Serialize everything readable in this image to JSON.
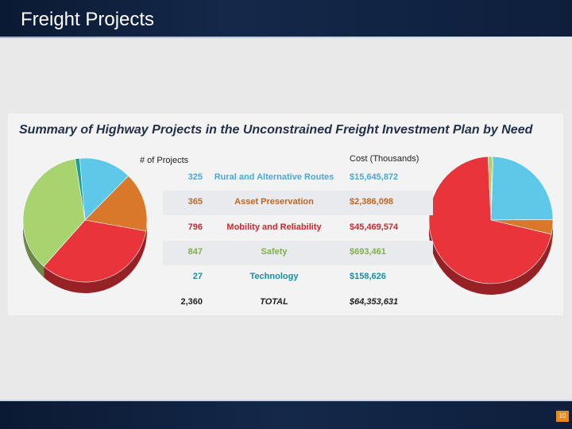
{
  "header": {
    "title": "Freight Projects"
  },
  "footer": {
    "page_number": "10"
  },
  "chart_data": {
    "type": "table",
    "title": "Summary of Highway Projects in the Unconstrained Freight Investment Plan by Need",
    "columns": [
      "# of Projects",
      "",
      "Cost (Thousands)"
    ],
    "rows": [
      {
        "projects": "325",
        "need": "Rural and Alternative Routes",
        "cost": "$15,645,872",
        "color": "#5fc8e8",
        "text_color": "#4aa9d6"
      },
      {
        "projects": "365",
        "need": "Asset Preservation",
        "cost": "$2,386,098",
        "color": "#d9782a",
        "text_color": "#c0661f"
      },
      {
        "projects": "796",
        "need": "Mobility and Reliability",
        "cost": "$45,469,574",
        "color": "#e8343a",
        "text_color": "#cc2a30"
      },
      {
        "projects": "847",
        "need": "Safety",
        "cost": "$693,461",
        "color": "#a8d46f",
        "text_color": "#7fb23f"
      },
      {
        "projects": "27",
        "need": "Technology",
        "cost": "$158,626",
        "color": "#1a9ea0",
        "text_color": "#1a8fa3"
      }
    ],
    "total": {
      "projects": "2,360",
      "need": "TOTAL",
      "cost": "$64,353,631"
    },
    "pie_projects": [
      325,
      365,
      796,
      847,
      27
    ],
    "pie_cost": [
      15645872,
      2386098,
      45469574,
      693461,
      158626
    ]
  }
}
